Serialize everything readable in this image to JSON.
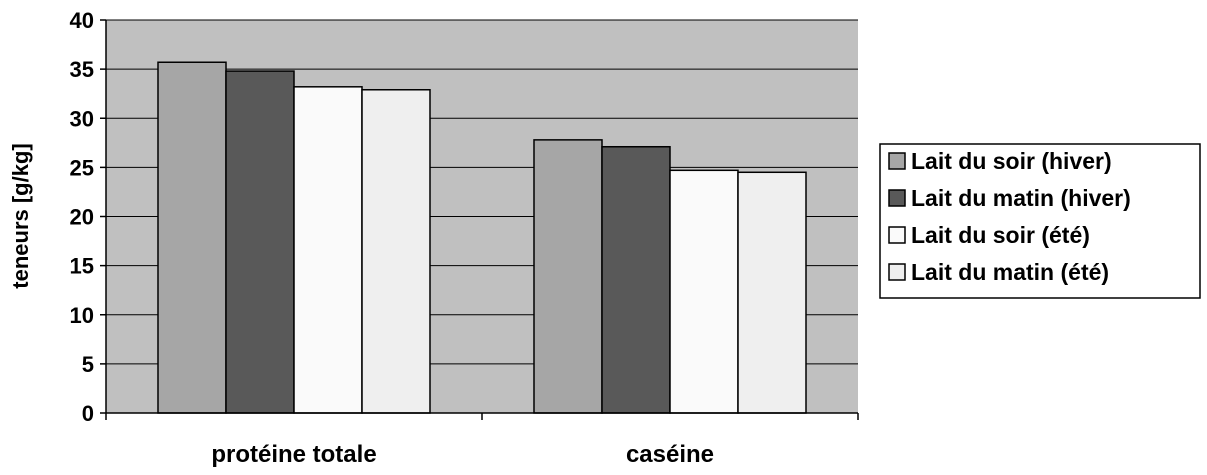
{
  "chart_data": {
    "type": "bar",
    "categories": [
      "protéine totale",
      "caséine"
    ],
    "series": [
      {
        "name": "Lait du soir (hiver)",
        "values": [
          35.7,
          27.8
        ],
        "color": "#a6a6a6"
      },
      {
        "name": "Lait du matin (hiver)",
        "values": [
          34.8,
          27.1
        ],
        "color": "#595959"
      },
      {
        "name": "Lait du soir (été)",
        "values": [
          33.2,
          24.7
        ],
        "color": "#fafafa"
      },
      {
        "name": "Lait du matin (été)",
        "values": [
          32.9,
          24.5
        ],
        "color": "#efefef"
      }
    ],
    "ylabel": "teneurs [g/kg]",
    "ylim": [
      0,
      40
    ],
    "yticks": [
      "0",
      "5",
      "10",
      "15",
      "20",
      "25",
      "30",
      "35",
      "40"
    ],
    "grid": true,
    "legend": "right",
    "plot_background": "#c0c0c0"
  }
}
